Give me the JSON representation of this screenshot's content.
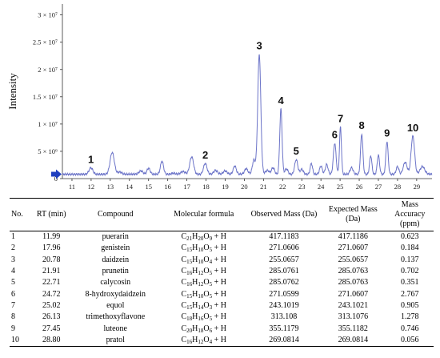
{
  "chart_data": {
    "type": "line",
    "ylabel": "Intensity",
    "xlim": [
      10.5,
      29.8
    ],
    "ylim": [
      0,
      32000000.0
    ],
    "x_ticks": [
      11,
      12,
      13,
      14,
      15,
      16,
      17,
      18,
      19,
      20,
      21,
      22,
      23,
      24,
      25,
      26,
      27,
      28,
      29
    ],
    "y_ticks": [
      {
        "value": 0,
        "label": "0"
      },
      {
        "value": 5000000,
        "label": "5 × 10⁶"
      },
      {
        "value": 10000000,
        "label": "1 × 10⁷"
      },
      {
        "value": 15000000,
        "label": "1.5 × 10⁷"
      },
      {
        "value": 20000000,
        "label": "2 × 10⁷"
      },
      {
        "value": 25000000,
        "label": "2.5 × 10⁷"
      },
      {
        "value": 30000000,
        "label": "3 × 10⁷"
      }
    ],
    "line_color": "#6c74c8",
    "baseline": 800000,
    "peaks": [
      {
        "rt": 11.99,
        "height": 2000000,
        "width": 0.1
      },
      {
        "rt": 13.1,
        "height": 4800000,
        "width": 0.11
      },
      {
        "rt": 13.5,
        "height": 1200000,
        "width": 0.1
      },
      {
        "rt": 14.6,
        "height": 1400000,
        "width": 0.1
      },
      {
        "rt": 15.0,
        "height": 1900000,
        "width": 0.08
      },
      {
        "rt": 15.7,
        "height": 3200000,
        "width": 0.08
      },
      {
        "rt": 16.3,
        "height": 1000000,
        "width": 0.1
      },
      {
        "rt": 16.8,
        "height": 1300000,
        "width": 0.12
      },
      {
        "rt": 17.25,
        "height": 4000000,
        "width": 0.1
      },
      {
        "rt": 17.96,
        "height": 2800000,
        "width": 0.09
      },
      {
        "rt": 18.5,
        "height": 1500000,
        "width": 0.1
      },
      {
        "rt": 19.0,
        "height": 1400000,
        "width": 0.1
      },
      {
        "rt": 19.5,
        "height": 2300000,
        "width": 0.08
      },
      {
        "rt": 20.1,
        "height": 1800000,
        "width": 0.09
      },
      {
        "rt": 20.5,
        "height": 3400000,
        "width": 0.08
      },
      {
        "rt": 20.78,
        "height": 22800000,
        "width": 0.08
      },
      {
        "rt": 21.2,
        "height": 1500000,
        "width": 0.1
      },
      {
        "rt": 21.5,
        "height": 2000000,
        "width": 0.08
      },
      {
        "rt": 21.91,
        "height": 12800000,
        "width": 0.06
      },
      {
        "rt": 22.2,
        "height": 1800000,
        "width": 0.08
      },
      {
        "rt": 22.71,
        "height": 3500000,
        "width": 0.08
      },
      {
        "rt": 23.0,
        "height": 1700000,
        "width": 0.08
      },
      {
        "rt": 23.5,
        "height": 2800000,
        "width": 0.06
      },
      {
        "rt": 24.0,
        "height": 2300000,
        "width": 0.07
      },
      {
        "rt": 24.3,
        "height": 2600000,
        "width": 0.07
      },
      {
        "rt": 24.72,
        "height": 6500000,
        "width": 0.07
      },
      {
        "rt": 25.02,
        "height": 9500000,
        "width": 0.05
      },
      {
        "rt": 25.6,
        "height": 2000000,
        "width": 0.08
      },
      {
        "rt": 26.13,
        "height": 8200000,
        "width": 0.06
      },
      {
        "rt": 26.6,
        "height": 4200000,
        "width": 0.06
      },
      {
        "rt": 27.0,
        "height": 4300000,
        "width": 0.06
      },
      {
        "rt": 27.45,
        "height": 6800000,
        "width": 0.06
      },
      {
        "rt": 28.0,
        "height": 2200000,
        "width": 0.07
      },
      {
        "rt": 28.4,
        "height": 3000000,
        "width": 0.1
      },
      {
        "rt": 28.8,
        "height": 7800000,
        "width": 0.09
      },
      {
        "rt": 29.3,
        "height": 2200000,
        "width": 0.12
      }
    ],
    "peak_labels": [
      {
        "label": "1",
        "rt": 11.99,
        "height": 2000000
      },
      {
        "label": "2",
        "rt": 17.96,
        "height": 2800000
      },
      {
        "label": "3",
        "rt": 20.78,
        "height": 22800000
      },
      {
        "label": "4",
        "rt": 21.91,
        "height": 12800000
      },
      {
        "label": "5",
        "rt": 22.71,
        "height": 3500000
      },
      {
        "label": "6",
        "rt": 24.72,
        "height": 6500000
      },
      {
        "label": "7",
        "rt": 25.02,
        "height": 9500000
      },
      {
        "label": "8",
        "rt": 26.13,
        "height": 8200000
      },
      {
        "label": "9",
        "rt": 27.45,
        "height": 6800000
      },
      {
        "label": "10",
        "rt": 28.8,
        "height": 7800000
      }
    ]
  },
  "table": {
    "headers": {
      "no": "No.",
      "rt": "RT (min)",
      "compound": "Compound",
      "formula": "Molecular formula",
      "observed": "Observed Mass (Da)",
      "expected": "Expected Mass (Da)",
      "accuracy": "Mass Accuracy (ppm)"
    },
    "rows": [
      {
        "no": "1",
        "rt": "11.99",
        "compound": "puerarin",
        "formula": "C21H20O9 + H",
        "observed": "417.1183",
        "expected": "417.1186",
        "accuracy": "0.623"
      },
      {
        "no": "2",
        "rt": "17.96",
        "compound": "genistein",
        "formula": "C15H10O5 + H",
        "observed": "271.0606",
        "expected": "271.0607",
        "accuracy": "0.184"
      },
      {
        "no": "3",
        "rt": "20.78",
        "compound": "daidzein",
        "formula": "C15H10O4 + H",
        "observed": "255.0657",
        "expected": "255.0657",
        "accuracy": "0.137"
      },
      {
        "no": "4",
        "rt": "21.91",
        "compound": "prunetin",
        "formula": "C16H12O5 + H",
        "observed": "285.0761",
        "expected": "285.0763",
        "accuracy": "0.702"
      },
      {
        "no": "5",
        "rt": "22.71",
        "compound": "calycosin",
        "formula": "C16H12O5 + H",
        "observed": "285.0762",
        "expected": "285.0763",
        "accuracy": "0.351"
      },
      {
        "no": "6",
        "rt": "24.72",
        "compound": "8-hydroxydaidzein",
        "formula": "C15H10O5 + H",
        "observed": "271.0599",
        "expected": "271.0607",
        "accuracy": "2.767"
      },
      {
        "no": "7",
        "rt": "25.02",
        "compound": "equol",
        "formula": "C15H14O3 + H",
        "observed": "243.1019",
        "expected": "243.1021",
        "accuracy": "0.905"
      },
      {
        "no": "8",
        "rt": "26.13",
        "compound": "trimethoxyflavone",
        "formula": "C18H16O5 + H",
        "observed": "313.108",
        "expected": "313.1076",
        "accuracy": "1.278"
      },
      {
        "no": "9",
        "rt": "27.45",
        "compound": "luteone",
        "formula": "C20H18O6 + H",
        "observed": "355.1179",
        "expected": "355.1182",
        "accuracy": "0.746"
      },
      {
        "no": "10",
        "rt": "28.80",
        "compound": "pratol",
        "formula": "C16H12O4 + H",
        "observed": "269.0814",
        "expected": "269.0814",
        "accuracy": "0.056"
      }
    ]
  }
}
